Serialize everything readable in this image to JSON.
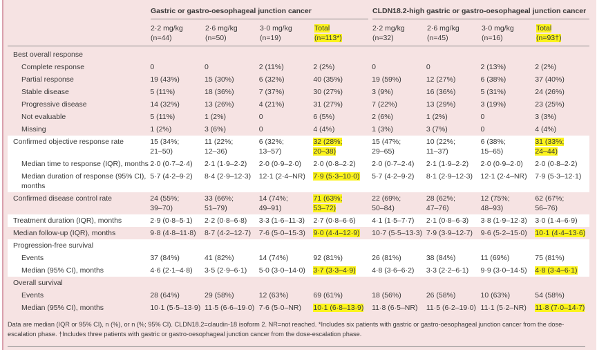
{
  "header": {
    "group1": "Gastric or gastro-oesophageal junction cancer",
    "group2": "CLDN18.2-high gastric or gastro-oesophageal junction cancer",
    "columns": [
      "2·2 mg/kg\n(n=44)",
      "2·6 mg/kg\n(n=50)",
      "3·0 mg/kg\n(n=19)",
      "Total\n(n=113*)",
      "2·2 mg/kg\n(n=32)",
      "2·6 mg/kg\n(n=45)",
      "3·0 mg/kg\n(n=16)",
      "Total\n(n=93†)"
    ],
    "highlighted_columns": [
      3,
      7
    ]
  },
  "highlight_color": "#fbf31c",
  "sections": [
    {
      "rows": [
        {
          "label": "Best overall response",
          "indent": false,
          "values": [
            "",
            "",
            "",
            "",
            "",
            "",
            "",
            ""
          ],
          "highlight": []
        },
        {
          "label": "Complete response",
          "indent": true,
          "values": [
            "0",
            "0",
            "2 (11%)",
            "2 (2%)",
            "0",
            "0",
            "2 (13%)",
            "2 (2%)"
          ],
          "highlight": []
        },
        {
          "label": "Partial response",
          "indent": true,
          "values": [
            "19 (43%)",
            "15 (30%)",
            "6 (32%)",
            "40 (35%)",
            "19 (59%)",
            "12 (27%)",
            "6 (38%)",
            "37 (40%)"
          ],
          "highlight": []
        },
        {
          "label": "Stable disease",
          "indent": true,
          "values": [
            "5 (11%)",
            "18 (36%)",
            "7 (37%)",
            "30 (27%)",
            "3 (9%)",
            "16 (36%)",
            "5 (31%)",
            "24 (26%)"
          ],
          "highlight": []
        },
        {
          "label": "Progressive disease",
          "indent": true,
          "values": [
            "14 (32%)",
            "13 (26%)",
            "4 (21%)",
            "31 (27%)",
            "7 (22%)",
            "13 (29%)",
            "3 (19%)",
            "23 (25%)"
          ],
          "highlight": []
        },
        {
          "label": "Not evaluable",
          "indent": true,
          "values": [
            "5 (11%)",
            "1 (2%)",
            "0",
            "6 (5%)",
            "2 (6%)",
            "1 (2%)",
            "0",
            "3 (3%)"
          ],
          "highlight": []
        },
        {
          "label": "Missing",
          "indent": true,
          "values": [
            "1 (2%)",
            "3 (6%)",
            "0",
            "4 (4%)",
            "1 (3%)",
            "3 (7%)",
            "0",
            "4 (4%)"
          ],
          "highlight": []
        }
      ]
    },
    {
      "rows": [
        {
          "label": "Confirmed objective response rate",
          "indent": false,
          "values": [
            "15 (34%;\n21–50)",
            "11 (22%;\n12–36)",
            "6 (32%;\n13–57)",
            "32 (28%;\n20–38)",
            "15 (47%;\n29–65)",
            "10 (22%;\n11–37)",
            "6 (38%;\n15–65)",
            "31 (33%;\n24–44)"
          ],
          "highlight": [
            3,
            7
          ]
        },
        {
          "label": "Median time to response (IQR), months",
          "indent": true,
          "values": [
            "2·0 (0·7–2·4)",
            "2·1 (1·9–2·2)",
            "2·0 (0·9–2·0)",
            "2·0 (0·8–2·2)",
            "2·0 (0·7–2·4)",
            "2·1 (1·9–2·2)",
            "2·0 (0·9–2·0)",
            "2·0 (0·8–2·2)"
          ],
          "highlight": []
        },
        {
          "label": "Median duration of response (95% CI),\nmonths",
          "indent": true,
          "values": [
            "5·7 (4·2–9·2)",
            "8·4 (2·9–12·3)",
            "12·1 (2·4–NR)",
            "7·9 (5·3–10·0)",
            "5·7 (4·2–9·2)",
            "8·1 (2·9–12·3)",
            "12·1 (2·4–NR)",
            "7·9 (5·3–12·1)"
          ],
          "highlight": [
            3
          ]
        }
      ]
    },
    {
      "rows": [
        {
          "label": "Confirmed disease control rate",
          "indent": false,
          "values": [
            "24 (55%;\n39–70)",
            "33 (66%;\n51–79)",
            "14 (74%;\n49–91)",
            "71 (63%;\n53–72)",
            "22 (69%;\n50–84)",
            "28 (62%;\n47–76)",
            "12 (75%;\n48–93)",
            "62 (67%;\n56–76)"
          ],
          "highlight": [
            3
          ]
        }
      ]
    },
    {
      "rows": [
        {
          "label": "Treatment duration (IQR), months",
          "indent": false,
          "values": [
            "2·9 (0·8–5·1)",
            "2·2 (0·8–6·8)",
            "3·3 (1·6–11·3)",
            "2·7 (0·8–6·6)",
            "4·1 (1·5–7·7)",
            "2·1 (0·8–6·3)",
            "3·8 (1·9–12·3)",
            "3·0 (1·4–6·9)"
          ],
          "highlight": []
        }
      ]
    },
    {
      "rows": [
        {
          "label": "Median follow-up (IQR), months",
          "indent": false,
          "values": [
            "9·8 (4·8–11·8)",
            "8·7 (4·2–12·7)",
            "7·6 (5·0–15·3)",
            "9·0 (4·4–12·9)",
            "10·7 (5·5–13·3)",
            "7·9 (3·9–12·7)",
            "9·6 (5·2–15·0)",
            "10·1 (4·4–13·6)"
          ],
          "highlight": [
            3,
            7
          ]
        }
      ]
    },
    {
      "rows": [
        {
          "label": "Progression-free survival",
          "indent": false,
          "values": [
            "",
            "",
            "",
            "",
            "",
            "",
            "",
            ""
          ],
          "highlight": []
        },
        {
          "label": "Events",
          "indent": true,
          "values": [
            "37 (84%)",
            "41 (82%)",
            "14 (74%)",
            "92 (81%)",
            "26 (81%)",
            "38 (84%)",
            "11 (69%)",
            "75 (81%)"
          ],
          "highlight": []
        },
        {
          "label": "Median (95% CI), months",
          "indent": true,
          "values": [
            "4·6 (2·1–4·8)",
            "3·5 (2·9–6·1)",
            "5·0 (3·0–14·0)",
            "3·7 (3·3–4·9)",
            "4·8 (3·6–6·2)",
            "3·3 (2·2–6·1)",
            "9·9 (3·0–14·5)",
            "4·8 (3·4–6·1)"
          ],
          "highlight": [
            3,
            7
          ]
        }
      ]
    },
    {
      "rows": [
        {
          "label": "Overall survival",
          "indent": false,
          "values": [
            "",
            "",
            "",
            "",
            "",
            "",
            "",
            ""
          ],
          "highlight": []
        },
        {
          "label": "Events",
          "indent": true,
          "values": [
            "28 (64%)",
            "29 (58%)",
            "12 (63%)",
            "69 (61%)",
            "18 (56%)",
            "26 (58%)",
            "10 (63%)",
            "54 (58%)"
          ],
          "highlight": []
        },
        {
          "label": "Median (95% CI), months",
          "indent": true,
          "values": [
            "10·1 (5·5–13·9)",
            "11·5 (6·6–19·0)",
            "7·6 (5·0–NR)",
            "10·1 (6·8–13·9)",
            "11·8 (6·5–NR)",
            "11·5 (6·2–19·0)",
            "11·1 (5·2–NR)",
            "11·8 (7·0–14·7)"
          ],
          "highlight": [
            3,
            7
          ]
        }
      ]
    }
  ],
  "footnote": "Data are median (IQR or 95% CI), n (%), or n (%; 95% CI). CLDN18.2=claudin-18 isoform 2. NR=not reached. *Includes six patients with gastric or gastro-oesophageal junction cancer from the dose-escalation phase. †Includes three patients with gastric or gastro-oesophageal junction cancer from the dose-escalation phase."
}
